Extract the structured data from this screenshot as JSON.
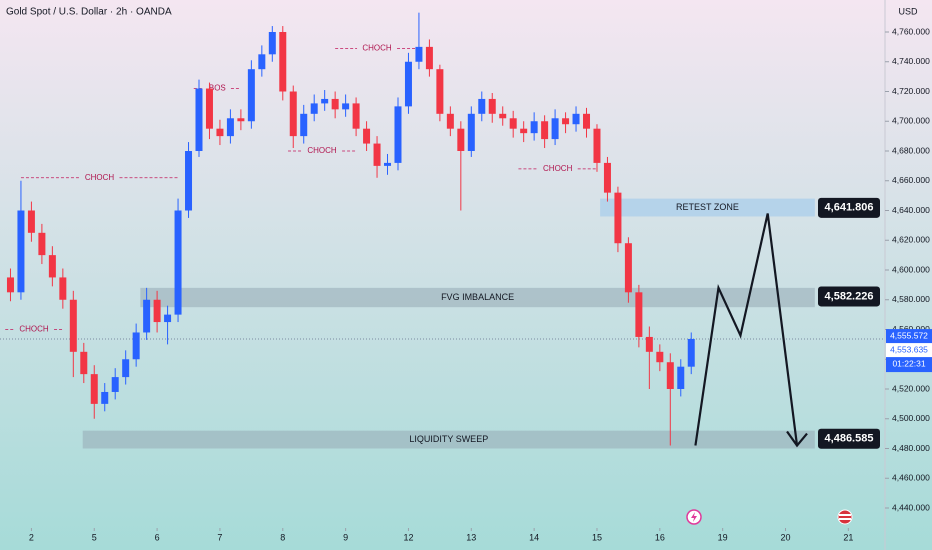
{
  "chart_data": {
    "type": "candlestick",
    "title": "Gold Spot / U.S. Dollar · 2h · OANDA",
    "currency": "USD",
    "up_color": "#2962ff",
    "down_color": "#f23645",
    "xlim": [
      0,
      84.5
    ],
    "ylim": [
      4440,
      4760
    ],
    "xticks": [
      {
        "value": 3,
        "label": "2"
      },
      {
        "value": 9,
        "label": "5"
      },
      {
        "value": 15,
        "label": "6"
      },
      {
        "value": 21,
        "label": "7"
      },
      {
        "value": 27,
        "label": "8"
      },
      {
        "value": 33,
        "label": "9"
      },
      {
        "value": 39,
        "label": "12"
      },
      {
        "value": 45,
        "label": "13"
      },
      {
        "value": 51,
        "label": "14"
      },
      {
        "value": 57,
        "label": "15"
      },
      {
        "value": 63,
        "label": "16"
      },
      {
        "value": 69,
        "label": "19"
      },
      {
        "value": 75,
        "label": "20"
      },
      {
        "value": 81,
        "label": "21"
      }
    ],
    "yticks": [
      {
        "value": 4440,
        "label": "4,440.000"
      },
      {
        "value": 4460,
        "label": "4,460.000"
      },
      {
        "value": 4480,
        "label": "4,480.000"
      },
      {
        "value": 4500,
        "label": "4,500.000"
      },
      {
        "value": 4520,
        "label": "4,520.000"
      },
      {
        "value": 4540,
        "label": "4,540.000"
      },
      {
        "value": 4560,
        "label": "4,560.000"
      },
      {
        "value": 4580,
        "label": "4,580.000"
      },
      {
        "value": 4600,
        "label": "4,600.000"
      },
      {
        "value": 4620,
        "label": "4,620.000"
      },
      {
        "value": 4640,
        "label": "4,640.000"
      },
      {
        "value": 4660,
        "label": "4,660.000"
      },
      {
        "value": 4680,
        "label": "4,680.000"
      },
      {
        "value": 4700,
        "label": "4,700.000"
      },
      {
        "value": 4720,
        "label": "4,720.000"
      },
      {
        "value": 4740,
        "label": "4,740.000"
      },
      {
        "value": 4760,
        "label": "4,760.000"
      }
    ],
    "x": [
      1,
      2,
      3,
      4,
      5,
      6,
      7,
      8,
      9,
      10,
      11,
      12,
      13,
      14,
      15,
      16,
      17,
      18,
      19,
      20,
      21,
      22,
      23,
      24,
      25,
      26,
      27,
      28,
      29,
      30,
      31,
      32,
      33,
      34,
      35,
      36,
      37,
      38,
      39,
      40,
      41,
      42,
      43,
      44,
      45,
      46,
      47,
      48,
      49,
      50,
      51,
      52,
      53,
      54,
      55,
      56,
      57,
      58,
      59,
      60,
      61,
      62,
      63,
      64,
      65,
      66
    ],
    "open": [
      4595,
      4585,
      4640,
      4625,
      4610,
      4595,
      4580,
      4545,
      4530,
      4510,
      4518,
      4528,
      4540,
      4558,
      4580,
      4565,
      4570,
      4640,
      4680,
      4722,
      4695,
      4690,
      4702,
      4700,
      4735,
      4745,
      4760,
      4720,
      4690,
      4705,
      4712,
      4715,
      4708,
      4712,
      4695,
      4685,
      4670,
      4672,
      4710,
      4740,
      4750,
      4735,
      4705,
      4695,
      4680,
      4705,
      4715,
      4705,
      4702,
      4695,
      4692,
      4700,
      4688,
      4702,
      4698,
      4705,
      4695,
      4672,
      4652,
      4618,
      4585,
      4555,
      4545,
      4538,
      4520,
      4535
    ],
    "high": [
      4601,
      4660,
      4646,
      4631,
      4616,
      4601,
      4586,
      4551,
      4536,
      4524,
      4534,
      4546,
      4564,
      4588,
      4586,
      4576,
      4648,
      4686,
      4728,
      4726,
      4701,
      4708,
      4708,
      4741,
      4751,
      4764,
      4764,
      4724,
      4711,
      4718,
      4721,
      4720,
      4718,
      4716,
      4700,
      4690,
      4678,
      4716,
      4746,
      4773,
      4755,
      4738,
      4710,
      4700,
      4710,
      4720,
      4719,
      4710,
      4707,
      4700,
      4706,
      4704,
      4708,
      4706,
      4710,
      4709,
      4698,
      4676,
      4656,
      4622,
      4590,
      4562,
      4550,
      4544,
      4540,
      4558
    ],
    "low": [
      4579,
      4580,
      4619,
      4604,
      4589,
      4574,
      4528,
      4524,
      4500,
      4505,
      4513,
      4523,
      4535,
      4553,
      4558,
      4550,
      4565,
      4635,
      4676,
      4688,
      4684,
      4685,
      4694,
      4695,
      4730,
      4740,
      4714,
      4682,
      4685,
      4700,
      4707,
      4702,
      4703,
      4690,
      4680,
      4662,
      4664,
      4667,
      4705,
      4735,
      4730,
      4700,
      4690,
      4640,
      4676,
      4700,
      4699,
      4697,
      4689,
      4686,
      4687,
      4682,
      4684,
      4692,
      4693,
      4689,
      4666,
      4646,
      4612,
      4578,
      4548,
      4520,
      4532,
      4482,
      4515,
      4530
    ],
    "close": [
      4585,
      4640,
      4625,
      4610,
      4595,
      4580,
      4545,
      4530,
      4510,
      4518,
      4528,
      4540,
      4558,
      4580,
      4565,
      4570,
      4640,
      4680,
      4722,
      4695,
      4690,
      4702,
      4700,
      4735,
      4745,
      4760,
      4720,
      4690,
      4705,
      4712,
      4715,
      4708,
      4712,
      4695,
      4685,
      4670,
      4672,
      4710,
      4740,
      4750,
      4735,
      4705,
      4695,
      4680,
      4705,
      4715,
      4705,
      4702,
      4695,
      4692,
      4700,
      4688,
      4702,
      4698,
      4705,
      4695,
      4672,
      4652,
      4618,
      4585,
      4555,
      4545,
      4538,
      4520,
      4535,
      4553.635
    ],
    "annotations": [
      {
        "text": "CHOCH",
        "y": 4662,
        "x": [
          2,
          17
        ]
      },
      {
        "text": "CHOCH",
        "y": 4560,
        "x": [
          0.5,
          6
        ]
      },
      {
        "text": "BOS",
        "y": 4722,
        "x": [
          18.5,
          23
        ]
      },
      {
        "text": "CHOCH",
        "y": 4680,
        "x": [
          27.5,
          34
        ]
      },
      {
        "text": "CHOCH",
        "y": 4749,
        "x": [
          32,
          40
        ]
      },
      {
        "text": "CHOCH",
        "y": 4668,
        "x": [
          49.5,
          57
        ]
      }
    ],
    "zones": [
      {
        "label": "RETEST ZONE",
        "bottom": 4636,
        "top": 4648,
        "x": [
          57.3,
          77.8
        ],
        "price": {
          "value": 4641.806,
          "label": "4,641.806"
        }
      },
      {
        "label": "FVG IMBALANCE",
        "bottom": 4575,
        "top": 4588,
        "x": [
          13.4,
          77.8
        ],
        "price": {
          "value": 4582.226,
          "label": "4,582.226"
        }
      },
      {
        "label": "LIQUIDITY SWEEP",
        "bottom": 4480,
        "top": 4492,
        "x": [
          7.9,
          77.8
        ],
        "price": {
          "value": 4486.585,
          "label": "4,486.585"
        }
      }
    ],
    "projection": {
      "x": [
        66.4,
        68.6,
        70.7,
        73.3,
        76.1
      ],
      "y": [
        4482,
        4588,
        4556,
        4638,
        4482
      ]
    },
    "mark_price": {
      "value": 4555.572,
      "label": "4,555.572"
    },
    "last_price": {
      "value": 4553.635,
      "label": "4,553.635"
    },
    "countdown": "01:22:31"
  }
}
